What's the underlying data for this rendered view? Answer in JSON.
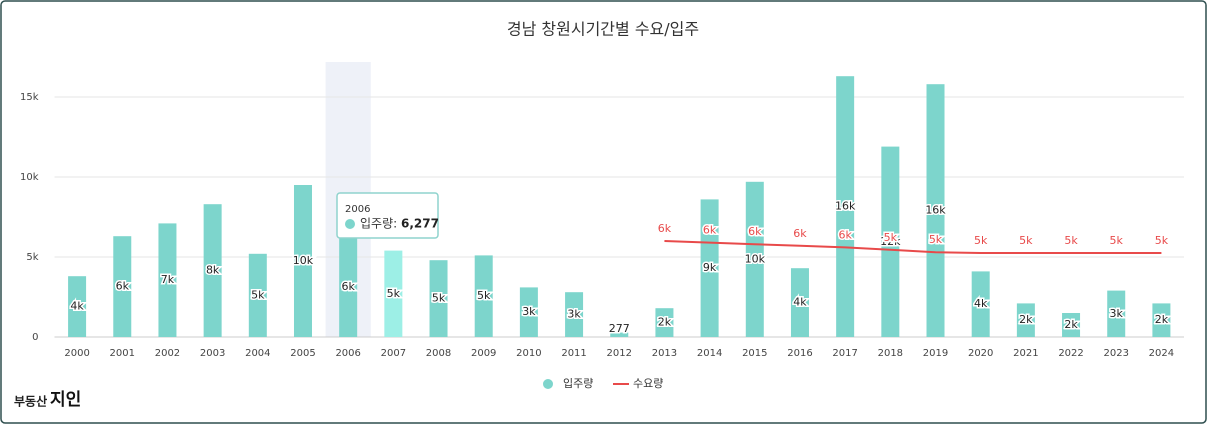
{
  "chart_data": {
    "type": "bar",
    "title": "경남 창원시기간별 수요/입주",
    "categories": [
      "2000",
      "2001",
      "2002",
      "2003",
      "2004",
      "2005",
      "2006",
      "2007",
      "2008",
      "2009",
      "2010",
      "2011",
      "2012",
      "2013",
      "2014",
      "2015",
      "2016",
      "2017",
      "2018",
      "2019",
      "2020",
      "2021",
      "2022",
      "2023",
      "2024"
    ],
    "series": [
      {
        "name": "입주량",
        "type": "bar",
        "color": "#7dd5cc",
        "values": [
          3800,
          6300,
          7100,
          8300,
          5200,
          9500,
          6277,
          5400,
          4800,
          5100,
          3100,
          2800,
          277,
          1800,
          8600,
          9700,
          4300,
          16300,
          11900,
          15800,
          4100,
          2100,
          1500,
          2900,
          2100
        ],
        "value_labels": [
          "4k",
          "6k",
          "7k",
          "8k",
          "5k",
          "10k",
          "6k",
          "5k",
          "5k",
          "5k",
          "3k",
          "3k",
          "277",
          "2k",
          "9k",
          "10k",
          "4k",
          "16k",
          "12k",
          "16k",
          "4k",
          "2k",
          "2k",
          "3k",
          "2k"
        ]
      },
      {
        "name": "수요량",
        "type": "line",
        "color": "#e84a4a",
        "values": [
          null,
          null,
          null,
          null,
          null,
          null,
          null,
          null,
          null,
          null,
          null,
          null,
          null,
          6000,
          5900,
          5800,
          5700,
          5600,
          5450,
          5300,
          5250,
          5250,
          5250,
          5250,
          5250
        ],
        "value_labels": [
          null,
          null,
          null,
          null,
          null,
          null,
          null,
          null,
          null,
          null,
          null,
          null,
          null,
          "6k",
          "6k",
          "6k",
          "6k",
          "6k",
          "5k",
          "5k",
          "5k",
          "5k",
          "5k",
          "5k",
          "5k"
        ]
      }
    ],
    "ylim": [
      0,
      17000
    ],
    "yticks": [
      0,
      {
        "value": 5000,
        "label": "5k"
      },
      {
        "value": 10000,
        "label": "10k"
      },
      {
        "value": 15000,
        "label": "15k"
      }
    ],
    "grid": true,
    "legend": "bottom",
    "highlight_index": 6,
    "tooltip": {
      "title": "2006",
      "label": "입주량:",
      "value": "6,277"
    }
  },
  "logo": {
    "text": "부동산",
    "brand": "지인"
  }
}
